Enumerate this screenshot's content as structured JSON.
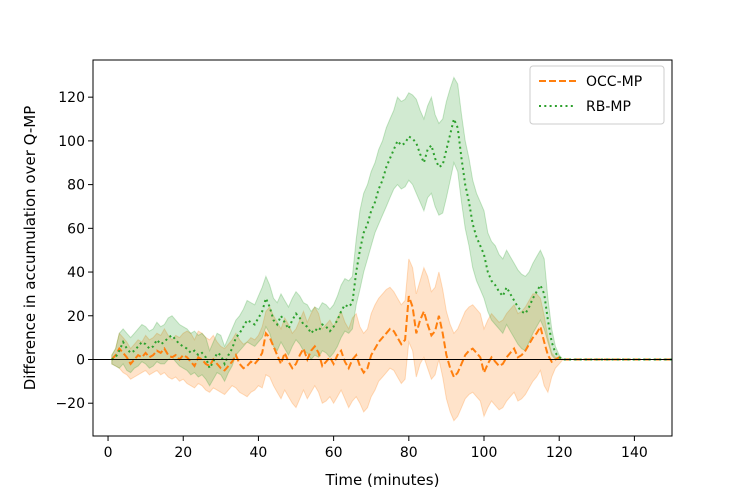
{
  "chart_data": {
    "type": "line",
    "title": "",
    "xlabel": "Time (minutes)",
    "ylabel": "Difference in accumulation over Q-MP",
    "xlim": [
      -4,
      150
    ],
    "ylim": [
      -35,
      137
    ],
    "xticks": [
      0,
      20,
      40,
      60,
      80,
      100,
      120,
      140
    ],
    "yticks": [
      -20,
      0,
      20,
      40,
      60,
      80,
      100,
      120
    ],
    "grid": false,
    "legend_position": "top-right",
    "reference_line_y": 0,
    "series": [
      {
        "name": "OCC-MP",
        "color": "#ff7f0e",
        "style": "dashed",
        "x": [
          1,
          2,
          3,
          4,
          5,
          6,
          7,
          8,
          9,
          10,
          11,
          12,
          13,
          14,
          15,
          16,
          17,
          18,
          19,
          20,
          21,
          22,
          23,
          24,
          25,
          26,
          27,
          28,
          29,
          30,
          31,
          32,
          33,
          34,
          35,
          36,
          37,
          38,
          39,
          40,
          41,
          42,
          43,
          44,
          45,
          46,
          47,
          48,
          49,
          50,
          51,
          52,
          53,
          54,
          55,
          56,
          57,
          58,
          59,
          60,
          61,
          62,
          63,
          64,
          65,
          66,
          67,
          68,
          69,
          70,
          71,
          72,
          73,
          74,
          75,
          76,
          77,
          78,
          79,
          80,
          81,
          82,
          83,
          84,
          85,
          86,
          87,
          88,
          89,
          90,
          91,
          92,
          93,
          94,
          95,
          96,
          97,
          98,
          99,
          100,
          101,
          102,
          103,
          104,
          105,
          106,
          107,
          108,
          109,
          110,
          111,
          112,
          113,
          114,
          115,
          116,
          117,
          118,
          119,
          120,
          121,
          122,
          123,
          124,
          125,
          126,
          127,
          128,
          129,
          130,
          132,
          134,
          136,
          138,
          140,
          142,
          144,
          146,
          148,
          150
        ],
        "y": [
          0,
          2,
          5,
          3,
          1,
          -2,
          0,
          2,
          1,
          3,
          1,
          2,
          4,
          3,
          5,
          2,
          1,
          2,
          0,
          2,
          1,
          -1,
          -3,
          1,
          0,
          -2,
          -3,
          0,
          -2,
          -4,
          -5,
          -3,
          -1,
          2,
          -2,
          -4,
          -3,
          -1,
          -2,
          0,
          3,
          12,
          10,
          6,
          2,
          -2,
          3,
          -1,
          -4,
          -2,
          2,
          5,
          0,
          4,
          6,
          3,
          -3,
          -1,
          1,
          -2,
          2,
          4,
          -1,
          -4,
          0,
          2,
          -3,
          -6,
          -4,
          2,
          5,
          8,
          10,
          12,
          14,
          13,
          10,
          7,
          9,
          29,
          24,
          12,
          18,
          22,
          16,
          11,
          13,
          20,
          12,
          2,
          -4,
          -8,
          -6,
          -2,
          2,
          4,
          5,
          3,
          1,
          -6,
          -2,
          1,
          -1,
          -3,
          -2,
          1,
          3,
          5,
          1,
          2,
          4,
          7,
          10,
          12,
          15,
          8,
          2,
          -1,
          0,
          1,
          0,
          0,
          0,
          0,
          0,
          0,
          0,
          0,
          0,
          0,
          0,
          0,
          0,
          0,
          0,
          0,
          0,
          0,
          0,
          0
        ],
        "lower": [
          -2,
          -3,
          -4,
          -6,
          -7,
          -9,
          -8,
          -7,
          -6,
          -5,
          -7,
          -6,
          -5,
          -7,
          -6,
          -8,
          -9,
          -8,
          -10,
          -9,
          -11,
          -12,
          -13,
          -11,
          -12,
          -14,
          -15,
          -13,
          -14,
          -15,
          -16,
          -14,
          -12,
          -13,
          -15,
          -16,
          -17,
          -15,
          -14,
          -12,
          -13,
          -7,
          -8,
          -12,
          -15,
          -18,
          -14,
          -17,
          -20,
          -22,
          -18,
          -14,
          -18,
          -15,
          -12,
          -15,
          -20,
          -19,
          -17,
          -20,
          -17,
          -14,
          -18,
          -22,
          -19,
          -17,
          -20,
          -24,
          -22,
          -17,
          -14,
          -10,
          -8,
          -6,
          -4,
          -5,
          -8,
          -11,
          -9,
          8,
          4,
          -8,
          -2,
          1,
          -4,
          -9,
          -7,
          0,
          -8,
          -18,
          -24,
          -28,
          -26,
          -22,
          -18,
          -16,
          -15,
          -17,
          -19,
          -26,
          -22,
          -19,
          -21,
          -23,
          -22,
          -19,
          -17,
          -15,
          -19,
          -18,
          -16,
          -13,
          -10,
          -8,
          -5,
          -12,
          -15,
          -8,
          -4,
          -2,
          0,
          0,
          0,
          0,
          0,
          0,
          0,
          0,
          0,
          0,
          0,
          0,
          0,
          0,
          0,
          0,
          0,
          0,
          0,
          0
        ],
        "upper": [
          2,
          5,
          12,
          10,
          8,
          5,
          7,
          9,
          8,
          11,
          9,
          10,
          12,
          11,
          14,
          11,
          9,
          11,
          10,
          12,
          13,
          12,
          9,
          13,
          12,
          10,
          9,
          11,
          8,
          6,
          5,
          7,
          9,
          12,
          9,
          7,
          8,
          10,
          9,
          11,
          15,
          22,
          24,
          20,
          17,
          14,
          19,
          16,
          12,
          14,
          18,
          22,
          17,
          21,
          24,
          21,
          14,
          16,
          18,
          15,
          19,
          22,
          17,
          14,
          19,
          21,
          15,
          12,
          14,
          21,
          25,
          28,
          30,
          32,
          33,
          31,
          28,
          25,
          27,
          46,
          42,
          30,
          36,
          42,
          38,
          31,
          33,
          40,
          32,
          22,
          16,
          12,
          14,
          18,
          22,
          24,
          25,
          23,
          21,
          14,
          18,
          21,
          19,
          17,
          18,
          21,
          23,
          25,
          21,
          22,
          24,
          27,
          30,
          30,
          28,
          20,
          10,
          3,
          1,
          0,
          0,
          0,
          0,
          0,
          0,
          0,
          0,
          0,
          0,
          0,
          0,
          0,
          0,
          0,
          0,
          0,
          0,
          0,
          0,
          0
        ]
      },
      {
        "name": "RB-MP",
        "color": "#2ca02c",
        "style": "dotted",
        "x": [
          1,
          2,
          3,
          4,
          5,
          6,
          7,
          8,
          9,
          10,
          11,
          12,
          13,
          14,
          15,
          16,
          17,
          18,
          19,
          20,
          21,
          22,
          23,
          24,
          25,
          26,
          27,
          28,
          29,
          30,
          31,
          32,
          33,
          34,
          35,
          36,
          37,
          38,
          39,
          40,
          41,
          42,
          43,
          44,
          45,
          46,
          47,
          48,
          49,
          50,
          51,
          52,
          53,
          54,
          55,
          56,
          57,
          58,
          59,
          60,
          61,
          62,
          63,
          64,
          65,
          66,
          67,
          68,
          69,
          70,
          71,
          72,
          73,
          74,
          75,
          76,
          77,
          78,
          79,
          80,
          81,
          82,
          83,
          84,
          85,
          86,
          87,
          88,
          89,
          90,
          91,
          92,
          93,
          94,
          95,
          96,
          97,
          98,
          99,
          100,
          101,
          102,
          103,
          104,
          105,
          106,
          107,
          108,
          109,
          110,
          111,
          112,
          113,
          114,
          115,
          116,
          117,
          118,
          119,
          120,
          121,
          122,
          123,
          124,
          125,
          126,
          127,
          128,
          129,
          130,
          132,
          134,
          136,
          138,
          140,
          142,
          144,
          146,
          148,
          150
        ],
        "y": [
          0,
          1,
          4,
          8,
          5,
          3,
          4,
          6,
          8,
          7,
          5,
          6,
          9,
          7,
          8,
          10,
          11,
          9,
          7,
          6,
          5,
          3,
          4,
          2,
          3,
          1,
          -4,
          -1,
          3,
          2,
          -2,
          2,
          5,
          10,
          12,
          15,
          18,
          17,
          16,
          19,
          22,
          28,
          24,
          18,
          16,
          20,
          17,
          14,
          18,
          21,
          19,
          16,
          15,
          12,
          14,
          13,
          16,
          15,
          13,
          15,
          18,
          22,
          25,
          24,
          26,
          40,
          50,
          58,
          62,
          68,
          72,
          78,
          82,
          88,
          92,
          96,
          100,
          98,
          99,
          102,
          101,
          99,
          94,
          90,
          96,
          98,
          92,
          88,
          89,
          96,
          103,
          110,
          106,
          92,
          80,
          72,
          62,
          56,
          52,
          48,
          40,
          36,
          34,
          31,
          29,
          33,
          30,
          27,
          24,
          22,
          21,
          24,
          28,
          31,
          34,
          30,
          18,
          8,
          3,
          1,
          0,
          0,
          0,
          0,
          0,
          0,
          0,
          0,
          0,
          0,
          0,
          0,
          0,
          0,
          0,
          0,
          0,
          0,
          0,
          0
        ],
        "lower": [
          -2,
          -3,
          -4,
          -2,
          -5,
          -6,
          -4,
          -3,
          -1,
          -2,
          -4,
          -3,
          -1,
          -2,
          -2,
          0,
          1,
          -1,
          -3,
          -4,
          -5,
          -7,
          -6,
          -8,
          -7,
          -9,
          -12,
          -9,
          -6,
          -7,
          -10,
          -6,
          -3,
          2,
          4,
          6,
          8,
          7,
          6,
          8,
          10,
          15,
          12,
          6,
          4,
          8,
          5,
          2,
          6,
          9,
          7,
          4,
          3,
          0,
          2,
          1,
          4,
          3,
          1,
          3,
          6,
          10,
          13,
          12,
          14,
          25,
          32,
          40,
          46,
          52,
          58,
          62,
          66,
          70,
          74,
          78,
          80,
          78,
          79,
          82,
          80,
          76,
          72,
          68,
          74,
          76,
          70,
          66,
          67,
          74,
          82,
          90,
          86,
          72,
          60,
          52,
          42,
          36,
          32,
          28,
          22,
          18,
          16,
          14,
          12,
          16,
          13,
          10,
          7,
          5,
          4,
          8,
          12,
          15,
          18,
          14,
          8,
          2,
          0,
          0,
          0,
          0,
          0,
          0,
          0,
          0,
          0,
          0,
          0,
          0,
          0,
          0,
          0,
          0,
          0,
          0,
          0,
          0,
          0,
          0
        ],
        "upper": [
          2,
          5,
          12,
          14,
          12,
          10,
          12,
          14,
          16,
          15,
          13,
          14,
          17,
          15,
          16,
          19,
          20,
          18,
          16,
          15,
          14,
          12,
          13,
          11,
          12,
          10,
          4,
          8,
          12,
          11,
          6,
          10,
          14,
          18,
          20,
          23,
          27,
          26,
          25,
          29,
          33,
          38,
          34,
          28,
          26,
          30,
          27,
          24,
          28,
          31,
          29,
          26,
          25,
          22,
          24,
          23,
          26,
          25,
          23,
          25,
          29,
          34,
          37,
          36,
          38,
          55,
          68,
          76,
          80,
          86,
          90,
          96,
          100,
          106,
          110,
          114,
          120,
          118,
          119,
          122,
          121,
          119,
          114,
          110,
          116,
          120,
          112,
          108,
          110,
          118,
          124,
          129,
          126,
          112,
          100,
          92,
          82,
          76,
          72,
          68,
          58,
          54,
          52,
          48,
          46,
          50,
          47,
          44,
          41,
          39,
          38,
          40,
          44,
          47,
          50,
          46,
          28,
          14,
          6,
          2,
          0,
          0,
          0,
          0,
          0,
          0,
          0,
          0,
          0,
          0,
          0,
          0,
          0,
          0,
          0,
          0,
          0,
          0,
          0,
          0
        ]
      }
    ]
  }
}
